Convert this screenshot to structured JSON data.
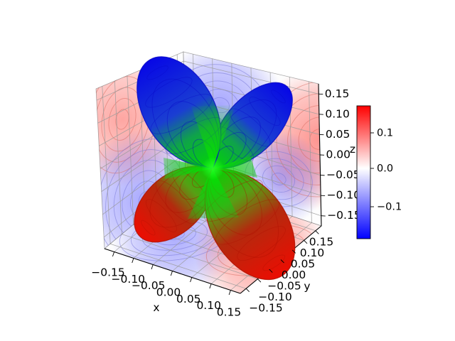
{
  "figure": {
    "background": "#ffffff",
    "title": ""
  },
  "chart_data": {
    "type": "surface",
    "subtype": "3d-surface-with-contour-projections",
    "title": "",
    "axes": {
      "x": {
        "label": "x",
        "tick_labels": [
          "−0.15",
          "−0.10",
          "−0.05",
          "0.00",
          "0.05",
          "0.10",
          "0.15"
        ],
        "tick_values": [
          -0.15,
          -0.1,
          -0.05,
          0.0,
          0.05,
          0.1,
          0.15
        ],
        "range": [
          -0.175,
          0.175
        ]
      },
      "y": {
        "label": "y",
        "tick_labels": [
          "−0.15",
          "−0.10",
          "−0.05",
          "0.00",
          "0.05",
          "0.10",
          "0.15"
        ],
        "tick_values": [
          -0.15,
          -0.1,
          -0.05,
          0.0,
          0.05,
          0.1,
          0.15
        ],
        "range": [
          -0.175,
          0.175
        ]
      },
      "z": {
        "label": "z",
        "tick_labels": [
          "−0.15",
          "−0.10",
          "−0.05",
          "0.00",
          "0.05",
          "0.10",
          "0.15"
        ],
        "tick_values": [
          -0.15,
          -0.1,
          -0.05,
          0.0,
          0.05,
          0.1,
          0.15
        ],
        "range": [
          -0.175,
          0.175
        ]
      }
    },
    "colorbar": {
      "colormap": "blue-white-red (bwr)",
      "tick_labels": [
        "0.1",
        "0.0",
        "−0.1"
      ],
      "tick_values": [
        0.1,
        0.0,
        -0.1
      ],
      "range": [
        -0.175,
        0.175
      ],
      "colors": {
        "max": "#ff0000",
        "mid": "#ffffff",
        "min": "#0000ff"
      }
    },
    "surface": {
      "description": "Four-lobed spherical-harmonic (d-orbital-like) surface, r(θ,φ) ∝ |sin2θ·cosφ|, lobe length ≈ 0.17",
      "lobes": [
        {
          "direction": "up-left (+z,−x)",
          "tip_color": "#0707e6"
        },
        {
          "direction": "up-right (+z,+x)",
          "tip_color": "#0707e6"
        },
        {
          "direction": "down-left (−z,−x)",
          "tip_color": "#ec0d02"
        },
        {
          "direction": "down-right (−z,+x)",
          "tip_color": "#ec0d02"
        }
      ],
      "color_mapping": "colored by z: blue on upper lobes, green near origin, red on lower lobes",
      "center_color": "#00e400"
    },
    "projections": {
      "left_pane": "filled contours: red blob upper-left, blue blob lower-center",
      "back_pane": "filled contours: blue blob upper-left, red at right edge, small red lower-left, blue lower-center",
      "floor_pane": "filled contours: blue blob on left half, red blob on right half"
    },
    "grid": true,
    "legend": false
  }
}
